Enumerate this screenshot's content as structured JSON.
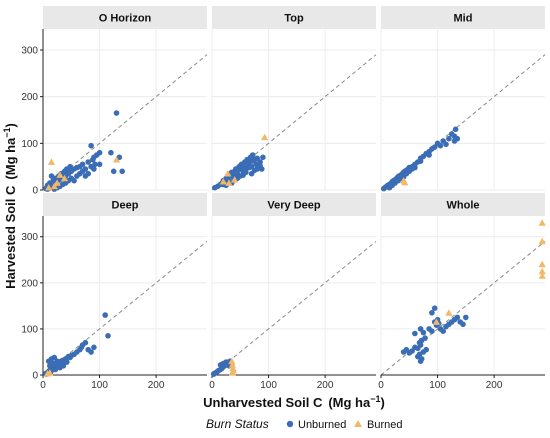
{
  "colors": {
    "unburned": "#3a6db5",
    "burned": "#f2b868",
    "strip": "#e8e8e8",
    "grid": "#ececec",
    "refline": "#8a8a8a",
    "axis": "#222222"
  },
  "chart_data": {
    "type": "scatter",
    "xlabel": "Unharvested Soil C",
    "xlabel_units": "(Mg ha",
    "ylabel": "Harvested Soil C",
    "ylabel_units": "(Mg ha",
    "units_sup": "−1",
    "units_close": ")",
    "xlim": [
      0,
      290
    ],
    "ylim": [
      0,
      345
    ],
    "x_ticks": [
      0,
      100,
      200
    ],
    "y_ticks": [
      0,
      100,
      200,
      300
    ],
    "reference_line": "y = x (dashed)",
    "legend": {
      "title": "Burn Status",
      "position": "bottom",
      "entries": [
        {
          "label": "Unburned",
          "marker": "circle",
          "color": "#3a6db5"
        },
        {
          "label": "Burned",
          "marker": "triangle",
          "color": "#f2b868"
        }
      ]
    },
    "panels": [
      {
        "title": "O Horizon",
        "unburned": [
          [
            5,
            3
          ],
          [
            8,
            10
          ],
          [
            10,
            6
          ],
          [
            12,
            15
          ],
          [
            15,
            8
          ],
          [
            18,
            20
          ],
          [
            20,
            12
          ],
          [
            22,
            25
          ],
          [
            25,
            18
          ],
          [
            28,
            30
          ],
          [
            30,
            22
          ],
          [
            32,
            35
          ],
          [
            35,
            28
          ],
          [
            38,
            40
          ],
          [
            40,
            30
          ],
          [
            42,
            45
          ],
          [
            45,
            35
          ],
          [
            48,
            50
          ],
          [
            50,
            40
          ],
          [
            55,
            45
          ],
          [
            60,
            48
          ],
          [
            65,
            50
          ],
          [
            70,
            55
          ],
          [
            75,
            45
          ],
          [
            80,
            60
          ],
          [
            85,
            50
          ],
          [
            88,
            65
          ],
          [
            90,
            70
          ],
          [
            92,
            55
          ],
          [
            95,
            75
          ],
          [
            100,
            80
          ],
          [
            85,
            95
          ],
          [
            120,
            80
          ],
          [
            125,
            40
          ],
          [
            130,
            165
          ],
          [
            135,
            70
          ],
          [
            140,
            40
          ],
          [
            15,
            30
          ],
          [
            25,
            5
          ],
          [
            35,
            12
          ],
          [
            45,
            20
          ],
          [
            8,
            2
          ],
          [
            12,
            4
          ],
          [
            20,
            2
          ],
          [
            30,
            8
          ],
          [
            40,
            15
          ],
          [
            50,
            25
          ],
          [
            60,
            30
          ],
          [
            70,
            40
          ],
          [
            80,
            35
          ],
          [
            90,
            45
          ],
          [
            100,
            55
          ],
          [
            55,
            20
          ],
          [
            65,
            35
          ],
          [
            75,
            30
          ]
        ],
        "burned": [
          [
            15,
            60
          ],
          [
            30,
            32
          ],
          [
            38,
            25
          ],
          [
            20,
            8
          ],
          [
            130,
            65
          ],
          [
            10,
            5
          ],
          [
            25,
            15
          ]
        ]
      },
      {
        "title": "Top",
        "unburned": [
          [
            5,
            5
          ],
          [
            10,
            8
          ],
          [
            15,
            12
          ],
          [
            18,
            15
          ],
          [
            20,
            20
          ],
          [
            25,
            25
          ],
          [
            28,
            22
          ],
          [
            30,
            30
          ],
          [
            32,
            35
          ],
          [
            35,
            38
          ],
          [
            38,
            32
          ],
          [
            40,
            40
          ],
          [
            42,
            45
          ],
          [
            45,
            42
          ],
          [
            48,
            50
          ],
          [
            50,
            45
          ],
          [
            52,
            55
          ],
          [
            55,
            50
          ],
          [
            58,
            60
          ],
          [
            60,
            55
          ],
          [
            62,
            65
          ],
          [
            65,
            58
          ],
          [
            68,
            70
          ],
          [
            70,
            62
          ],
          [
            72,
            75
          ],
          [
            75,
            65
          ],
          [
            78,
            55
          ],
          [
            80,
            68
          ],
          [
            82,
            50
          ],
          [
            85,
            60
          ],
          [
            88,
            45
          ],
          [
            90,
            70
          ],
          [
            25,
            10
          ],
          [
            30,
            18
          ],
          [
            35,
            28
          ],
          [
            40,
            22
          ],
          [
            45,
            35
          ],
          [
            50,
            30
          ],
          [
            55,
            40
          ],
          [
            60,
            38
          ],
          [
            65,
            48
          ],
          [
            70,
            50
          ],
          [
            75,
            42
          ],
          [
            80,
            45
          ],
          [
            85,
            52
          ],
          [
            20,
            12
          ],
          [
            35,
            15
          ],
          [
            45,
            25
          ],
          [
            55,
            32
          ],
          [
            60,
            45
          ],
          [
            70,
            35
          ]
        ],
        "burned": [
          [
            93,
            113
          ],
          [
            20,
            18
          ],
          [
            30,
            15
          ],
          [
            40,
            22
          ],
          [
            28,
            35
          ]
        ]
      },
      {
        "title": "Mid",
        "unburned": [
          [
            5,
            3
          ],
          [
            8,
            6
          ],
          [
            10,
            8
          ],
          [
            12,
            10
          ],
          [
            15,
            12
          ],
          [
            18,
            15
          ],
          [
            20,
            18
          ],
          [
            22,
            20
          ],
          [
            25,
            22
          ],
          [
            28,
            25
          ],
          [
            30,
            28
          ],
          [
            32,
            30
          ],
          [
            35,
            32
          ],
          [
            38,
            35
          ],
          [
            40,
            38
          ],
          [
            42,
            40
          ],
          [
            45,
            42
          ],
          [
            48,
            45
          ],
          [
            50,
            48
          ],
          [
            55,
            50
          ],
          [
            60,
            55
          ],
          [
            65,
            60
          ],
          [
            70,
            68
          ],
          [
            75,
            72
          ],
          [
            80,
            78
          ],
          [
            85,
            82
          ],
          [
            90,
            88
          ],
          [
            95,
            92
          ],
          [
            100,
            100
          ],
          [
            105,
            95
          ],
          [
            110,
            105
          ],
          [
            115,
            98
          ],
          [
            120,
            110
          ],
          [
            125,
            120
          ],
          [
            130,
            115
          ],
          [
            132,
            130
          ],
          [
            130,
            105
          ],
          [
            135,
            110
          ],
          [
            25,
            15
          ],
          [
            30,
            20
          ],
          [
            35,
            25
          ],
          [
            40,
            28
          ],
          [
            45,
            35
          ],
          [
            50,
            40
          ],
          [
            55,
            45
          ],
          [
            15,
            5
          ],
          [
            20,
            10
          ],
          [
            60,
            48
          ],
          [
            70,
            62
          ],
          [
            85,
            75
          ]
        ],
        "burned": [
          [
            40,
            20
          ],
          [
            42,
            16
          ]
        ]
      },
      {
        "title": "Deep",
        "unburned": [
          [
            5,
            3
          ],
          [
            8,
            5
          ],
          [
            10,
            8
          ],
          [
            12,
            10
          ],
          [
            15,
            12
          ],
          [
            18,
            15
          ],
          [
            20,
            18
          ],
          [
            22,
            20
          ],
          [
            25,
            22
          ],
          [
            28,
            25
          ],
          [
            30,
            28
          ],
          [
            32,
            30
          ],
          [
            35,
            32
          ],
          [
            38,
            30
          ],
          [
            40,
            35
          ],
          [
            42,
            28
          ],
          [
            45,
            40
          ],
          [
            48,
            38
          ],
          [
            50,
            42
          ],
          [
            55,
            45
          ],
          [
            60,
            50
          ],
          [
            65,
            55
          ],
          [
            68,
            60
          ],
          [
            70,
            65
          ],
          [
            75,
            70
          ],
          [
            80,
            55
          ],
          [
            85,
            50
          ],
          [
            90,
            60
          ],
          [
            110,
            130
          ],
          [
            115,
            85
          ],
          [
            10,
            30
          ],
          [
            15,
            35
          ],
          [
            20,
            38
          ],
          [
            25,
            30
          ],
          [
            12,
            20
          ],
          [
            18,
            25
          ],
          [
            6,
            2
          ],
          [
            14,
            7
          ],
          [
            22,
            12
          ],
          [
            30,
            16
          ],
          [
            36,
            20
          ]
        ],
        "burned": [
          [
            8,
            3
          ],
          [
            12,
            5
          ]
        ]
      },
      {
        "title": "Very Deep",
        "unburned": [
          [
            3,
            2
          ],
          [
            5,
            4
          ],
          [
            8,
            6
          ],
          [
            10,
            8
          ],
          [
            12,
            10
          ],
          [
            15,
            12
          ],
          [
            18,
            15
          ],
          [
            20,
            18
          ],
          [
            22,
            20
          ],
          [
            25,
            22
          ],
          [
            28,
            25
          ],
          [
            30,
            28
          ],
          [
            32,
            30
          ],
          [
            20,
            25
          ],
          [
            25,
            28
          ],
          [
            15,
            22
          ],
          [
            30,
            20
          ],
          [
            35,
            25
          ]
        ],
        "burned": [
          [
            35,
            30
          ],
          [
            36,
            22
          ],
          [
            37,
            15
          ],
          [
            38,
            10
          ],
          [
            36,
            5
          ]
        ]
      },
      {
        "title": "Whole",
        "unburned": [
          [
            40,
            50
          ],
          [
            45,
            55
          ],
          [
            50,
            48
          ],
          [
            55,
            52
          ],
          [
            60,
            60
          ],
          [
            65,
            58
          ],
          [
            68,
            70
          ],
          [
            70,
            65
          ],
          [
            72,
            75
          ],
          [
            75,
            50
          ],
          [
            78,
            80
          ],
          [
            80,
            55
          ],
          [
            65,
            40
          ],
          [
            68,
            45
          ],
          [
            70,
            30
          ],
          [
            72,
            35
          ],
          [
            90,
            135
          ],
          [
            95,
            145
          ],
          [
            100,
            120
          ],
          [
            105,
            100
          ],
          [
            110,
            95
          ],
          [
            115,
            105
          ],
          [
            120,
            110
          ],
          [
            125,
            115
          ],
          [
            130,
            120
          ],
          [
            135,
            125
          ],
          [
            140,
            115
          ],
          [
            145,
            110
          ],
          [
            150,
            125
          ],
          [
            98,
            108
          ],
          [
            102,
            112
          ],
          [
            60,
            90
          ],
          [
            70,
            100
          ],
          [
            75,
            92
          ],
          [
            85,
            100
          ],
          [
            90,
            95
          ],
          [
            95,
            115
          ]
        ],
        "burned": [
          [
            285,
            330
          ],
          [
            285,
            290
          ],
          [
            285,
            240
          ],
          [
            285,
            225
          ],
          [
            285,
            215
          ],
          [
            120,
            135
          ],
          [
            98,
            115
          ]
        ]
      }
    ]
  }
}
